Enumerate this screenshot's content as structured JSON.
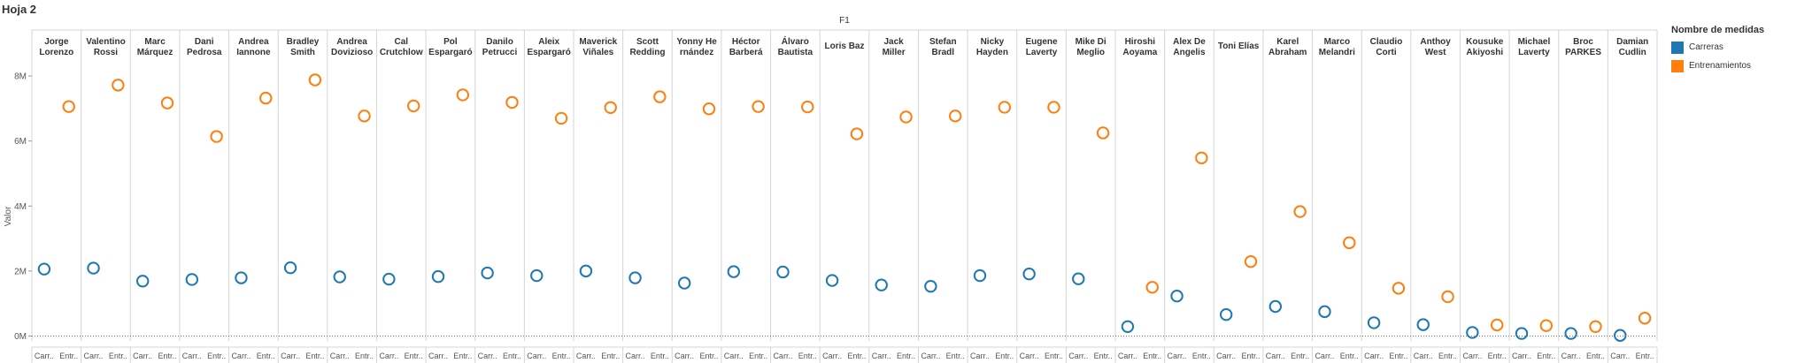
{
  "sheet_title": "Hoja 2",
  "colors": {
    "carreras": "#1f77b4",
    "entrenamientos": "#ff7f0e",
    "grid": "#d4d4d4",
    "text": "#333333"
  },
  "legend": {
    "title": "Nombre de medidas",
    "items": [
      {
        "label": "Carreras",
        "color": "#1f77b4"
      },
      {
        "label": "Entrenamientos",
        "color": "#ff7f0e"
      }
    ]
  },
  "chart_data": {
    "type": "scatter",
    "column_header": "F1",
    "ylabel": "Valor",
    "ylim": [
      -150000,
      8600000
    ],
    "yticks": [
      0,
      2000000,
      4000000,
      6000000,
      8000000
    ],
    "ytick_labels": [
      "0M",
      "2M",
      "4M",
      "6M",
      "8M"
    ],
    "legend_position": "right",
    "grid": true,
    "x_sub_labels": [
      "Carr..",
      "Entr.."
    ],
    "categories": [
      "Jorge\nLorenzo",
      "Valentino\nRossi",
      "Marc\nMárquez",
      "Dani\nPedrosa",
      "Andrea\nIannone",
      "Bradley\nSmith",
      "Andrea\nDovizioso",
      "Cal\nCrutchlow",
      "Pol\nEspargaró",
      "Danilo\nPetrucci",
      "Aleix\nEspargaró",
      "Maverick\nViñales",
      "Scott\nRedding",
      "Yonny He\nrnández",
      "Héctor\nBarberá",
      "Álvaro\nBautista",
      "Loris Baz",
      "Jack\nMiller",
      "Stefan\nBradl",
      "Nicky\nHayden",
      "Eugene\nLaverty",
      "Mike Di\nMeglio",
      "Hiroshi\nAoyama",
      "Alex De\nAngelis",
      "Toni Elías",
      "Karel\nAbraham",
      "Marco\nMelandri",
      "Claudio\nCorti",
      "Anthoy\nWest",
      "Kousuke\nAkiyoshi",
      "Michael\nLaverty",
      "Broc\nPARKES",
      "Damian\nCudlin"
    ],
    "series": [
      {
        "name": "Carreras",
        "color": "#1f77b4",
        "values": [
          2060000,
          2090000,
          1690000,
          1740000,
          1790000,
          2100000,
          1820000,
          1750000,
          1830000,
          1940000,
          1860000,
          2000000,
          1790000,
          1630000,
          1980000,
          1970000,
          1710000,
          1570000,
          1530000,
          1860000,
          1910000,
          1760000,
          290000,
          1230000,
          660000,
          910000,
          750000,
          410000,
          350000,
          110000,
          80000,
          80000,
          20000
        ]
      },
      {
        "name": "Entrenamientos",
        "color": "#ff7f0e",
        "values": [
          7060000,
          7720000,
          7170000,
          6140000,
          7320000,
          7880000,
          6770000,
          7080000,
          7420000,
          7190000,
          6700000,
          7030000,
          7360000,
          6990000,
          7060000,
          7050000,
          6220000,
          6740000,
          6770000,
          7040000,
          7040000,
          6250000,
          1500000,
          5480000,
          2290000,
          3830000,
          2870000,
          1470000,
          1210000,
          340000,
          320000,
          290000,
          550000
        ]
      }
    ]
  }
}
